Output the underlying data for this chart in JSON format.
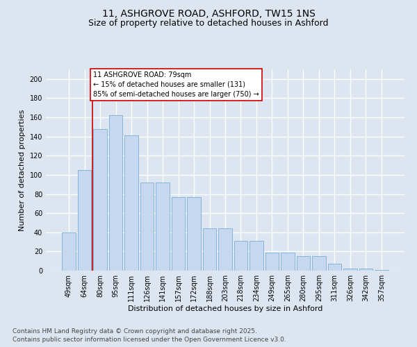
{
  "title1": "11, ASHGROVE ROAD, ASHFORD, TW15 1NS",
  "title2": "Size of property relative to detached houses in Ashford",
  "xlabel": "Distribution of detached houses by size in Ashford",
  "ylabel": "Number of detached properties",
  "categories": [
    "49sqm",
    "64sqm",
    "80sqm",
    "95sqm",
    "111sqm",
    "126sqm",
    "141sqm",
    "157sqm",
    "172sqm",
    "188sqm",
    "203sqm",
    "218sqm",
    "234sqm",
    "249sqm",
    "265sqm",
    "280sqm",
    "295sqm",
    "311sqm",
    "326sqm",
    "342sqm",
    "357sqm"
  ],
  "values": [
    40,
    105,
    148,
    162,
    141,
    92,
    92,
    77,
    77,
    44,
    44,
    31,
    31,
    19,
    19,
    15,
    15,
    7,
    2,
    2,
    1
  ],
  "bar_color": "#c5d8f0",
  "bar_edge_color": "#7aafd4",
  "annotation_box_text": "11 ASHGROVE ROAD: 79sqm\n← 15% of detached houses are smaller (131)\n85% of semi-detached houses are larger (750) →",
  "vline_x_idx": 1,
  "vline_color": "#cc0000",
  "box_edge_color": "#cc0000",
  "ylim": [
    0,
    210
  ],
  "yticks": [
    0,
    20,
    40,
    60,
    80,
    100,
    120,
    140,
    160,
    180,
    200
  ],
  "footnote1": "Contains HM Land Registry data © Crown copyright and database right 2025.",
  "footnote2": "Contains public sector information licensed under the Open Government Licence v3.0.",
  "background_color": "#dde6f0",
  "plot_bg_color": "#dde6f0",
  "grid_color": "#ffffff",
  "title_fontsize": 10,
  "subtitle_fontsize": 9,
  "axis_label_fontsize": 8,
  "tick_fontsize": 7,
  "footnote_fontsize": 6.5
}
